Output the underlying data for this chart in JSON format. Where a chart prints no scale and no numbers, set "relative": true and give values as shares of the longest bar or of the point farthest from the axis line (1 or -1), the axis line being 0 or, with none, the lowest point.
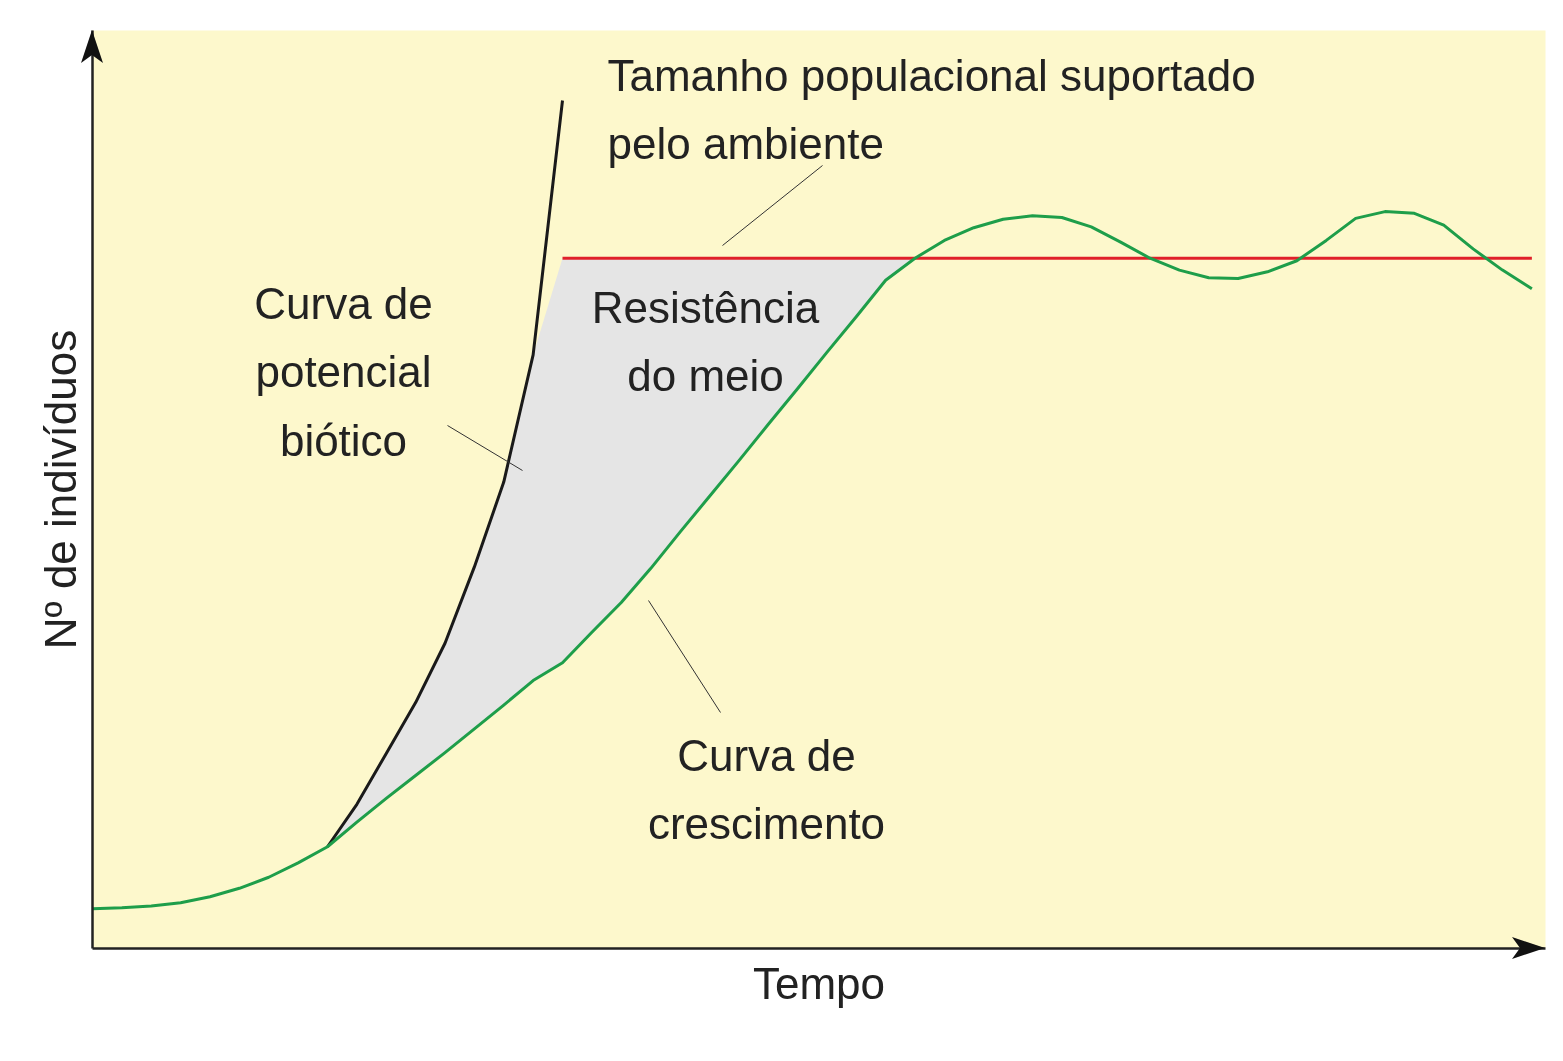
{
  "chart_data": {
    "type": "line",
    "relative": true,
    "xlabel": "Tempo",
    "ylabel": "Nº de indivíduos",
    "categories": [
      null,
      null,
      null,
      null,
      null,
      null,
      null,
      null,
      null,
      null,
      null,
      null,
      null,
      null,
      null,
      null,
      null,
      null,
      null,
      null,
      null,
      null,
      null,
      null,
      null,
      null,
      null,
      null,
      null,
      null,
      null,
      null,
      null,
      null,
      null,
      null,
      null,
      null,
      null,
      null,
      null,
      null,
      null,
      null,
      null,
      null,
      null,
      null,
      null,
      null
    ],
    "series": [
      {
        "type": "area",
        "color": "#e5e5e5",
        "values": [
          null,
          null,
          null,
          null,
          null,
          null,
          null,
          null,
          0.12,
          0.17,
          0.23,
          0.29,
          0.36,
          0.45,
          0.55,
          0.7,
          0.814,
          0.814,
          0.814,
          0.814,
          0.814,
          0.814,
          0.814,
          0.814,
          0.814,
          0.814,
          0.814,
          0.814,
          0.814,
          null,
          null,
          null,
          null,
          null,
          null,
          null,
          null,
          null,
          null,
          null,
          null,
          null,
          null,
          null,
          null,
          null,
          null,
          null,
          null,
          null
        ]
      },
      {
        "color": "#1a1a1a",
        "values": [
          null,
          null,
          null,
          null,
          null,
          null,
          null,
          null,
          0.12,
          0.17,
          0.23,
          0.29,
          0.36,
          0.45,
          0.55,
          0.7,
          1.0,
          null,
          null,
          null,
          null,
          null,
          null,
          null,
          null,
          null,
          null,
          null,
          null,
          null,
          null,
          null,
          null,
          null,
          null,
          null,
          null,
          null,
          null,
          null,
          null,
          null,
          null,
          null,
          null,
          null,
          null,
          null,
          null,
          null
        ]
      },
      {
        "color": "#e0202a",
        "values": [
          null,
          null,
          null,
          null,
          null,
          null,
          null,
          null,
          null,
          null,
          null,
          null,
          null,
          null,
          null,
          null,
          0.814,
          0.814,
          0.814,
          0.814,
          0.814,
          0.814,
          0.814,
          0.814,
          0.814,
          0.814,
          0.814,
          0.814,
          0.814,
          0.814,
          0.814,
          0.814,
          0.814,
          0.814,
          0.814,
          0.814,
          0.814,
          0.814,
          0.814,
          0.814,
          0.814,
          0.814,
          0.814,
          0.814,
          0.814,
          0.814,
          0.814,
          0.814,
          0.814,
          0.814
        ]
      },
      {
        "color": "#1e9e4a",
        "values": [
          0.047,
          0.048,
          0.05,
          0.054,
          0.061,
          0.071,
          0.084,
          0.101,
          0.12,
          0.149,
          0.177,
          0.204,
          0.231,
          0.259,
          0.287,
          0.316,
          0.337,
          0.373,
          0.408,
          0.448,
          0.491,
          0.533,
          0.575,
          0.618,
          0.66,
          0.703,
          0.745,
          0.788,
          0.814,
          0.835,
          0.85,
          0.86,
          0.864,
          0.862,
          0.851,
          0.833,
          0.814,
          0.8,
          0.791,
          0.79,
          0.798,
          0.811,
          0.835,
          0.861,
          0.869,
          0.867,
          0.853,
          0.825,
          0.8,
          0.778
        ]
      }
    ],
    "annotations": [
      "Tamanho populacional suportado\npelo ambiente",
      "Curva de\npotencial\nbiótico",
      "Resistência\ndo meio",
      "Curva de\ncrescimento"
    ]
  }
}
